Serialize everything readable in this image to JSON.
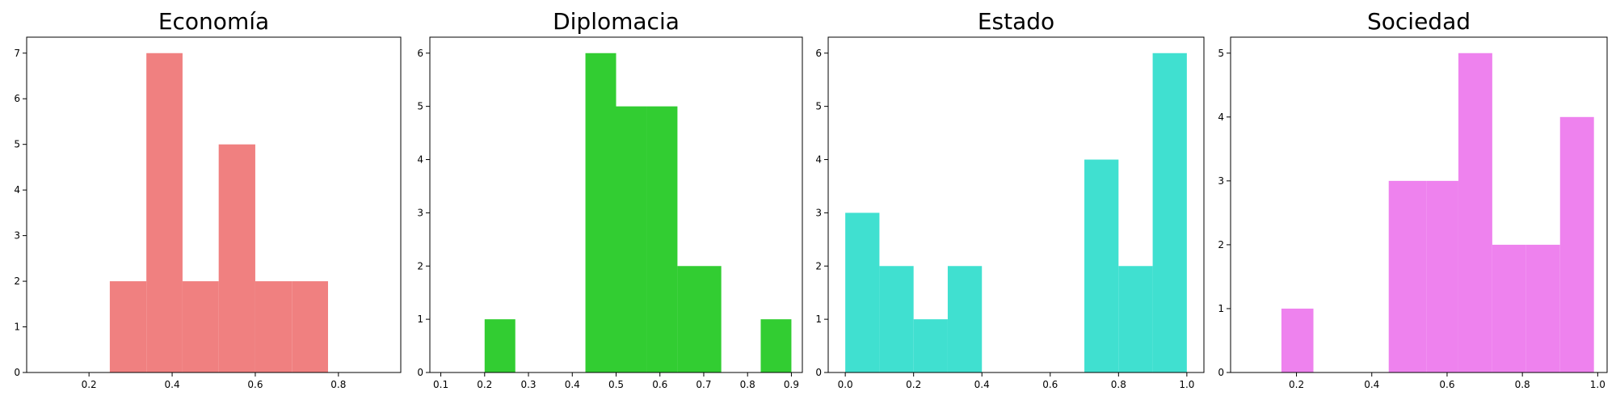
{
  "chart_data": [
    {
      "type": "bar",
      "title": "Economía",
      "color": "#F08080",
      "xlim": [
        0.05,
        0.95
      ],
      "ylim": [
        0,
        7.35
      ],
      "xticks": [
        "0.2",
        "0.4",
        "0.6",
        "0.8"
      ],
      "yticks": [
        "0",
        "1",
        "2",
        "3",
        "4",
        "5",
        "6",
        "7"
      ],
      "bins": [
        {
          "x0": 0.25,
          "x1": 0.338,
          "count": 2
        },
        {
          "x0": 0.338,
          "x1": 0.425,
          "count": 7
        },
        {
          "x0": 0.425,
          "x1": 0.512,
          "count": 2
        },
        {
          "x0": 0.512,
          "x1": 0.6,
          "count": 5
        },
        {
          "x0": 0.6,
          "x1": 0.688,
          "count": 2
        },
        {
          "x0": 0.688,
          "x1": 0.775,
          "count": 2
        }
      ]
    },
    {
      "type": "bar",
      "title": "Diplomacia",
      "color": "#32CD32",
      "xlim": [
        0.075,
        0.925
      ],
      "ylim": [
        0,
        6.3
      ],
      "xticks": [
        "0.1",
        "0.2",
        "0.3",
        "0.4",
        "0.5",
        "0.6",
        "0.7",
        "0.8",
        "0.9"
      ],
      "yticks": [
        "0",
        "1",
        "2",
        "3",
        "4",
        "5",
        "6"
      ],
      "bins": [
        {
          "x0": 0.2,
          "x1": 0.27,
          "count": 1
        },
        {
          "x0": 0.43,
          "x1": 0.5,
          "count": 6
        },
        {
          "x0": 0.5,
          "x1": 0.57,
          "count": 5
        },
        {
          "x0": 0.57,
          "x1": 0.64,
          "count": 5
        },
        {
          "x0": 0.64,
          "x1": 0.74,
          "count": 2
        },
        {
          "x0": 0.83,
          "x1": 0.9,
          "count": 1
        }
      ]
    },
    {
      "type": "bar",
      "title": "Estado",
      "color": "#40E0D0",
      "xlim": [
        -0.05,
        1.05
      ],
      "ylim": [
        0,
        6.3
      ],
      "xticks": [
        "0.0",
        "0.2",
        "0.4",
        "0.6",
        "0.8",
        "1.0"
      ],
      "yticks": [
        "0",
        "1",
        "2",
        "3",
        "4",
        "5",
        "6"
      ],
      "bins": [
        {
          "x0": 0.0,
          "x1": 0.1,
          "count": 3
        },
        {
          "x0": 0.1,
          "x1": 0.2,
          "count": 2
        },
        {
          "x0": 0.2,
          "x1": 0.3,
          "count": 1
        },
        {
          "x0": 0.3,
          "x1": 0.4,
          "count": 2
        },
        {
          "x0": 0.7,
          "x1": 0.8,
          "count": 4
        },
        {
          "x0": 0.8,
          "x1": 0.9,
          "count": 2
        },
        {
          "x0": 0.9,
          "x1": 1.0,
          "count": 6
        }
      ]
    },
    {
      "type": "bar",
      "title": "Sociedad",
      "color": "#EE82EE",
      "xlim": [
        0.025,
        1.025
      ],
      "ylim": [
        0,
        5.25
      ],
      "xticks": [
        "0.2",
        "0.4",
        "0.6",
        "0.8",
        "1.0"
      ],
      "yticks": [
        "0",
        "1",
        "2",
        "3",
        "4",
        "5"
      ],
      "bins": [
        {
          "x0": 0.16,
          "x1": 0.245,
          "count": 1
        },
        {
          "x0": 0.445,
          "x1": 0.545,
          "count": 3
        },
        {
          "x0": 0.545,
          "x1": 0.63,
          "count": 3
        },
        {
          "x0": 0.63,
          "x1": 0.72,
          "count": 5
        },
        {
          "x0": 0.72,
          "x1": 0.81,
          "count": 2
        },
        {
          "x0": 0.81,
          "x1": 0.9,
          "count": 2
        },
        {
          "x0": 0.9,
          "x1": 0.99,
          "count": 4
        }
      ]
    }
  ]
}
